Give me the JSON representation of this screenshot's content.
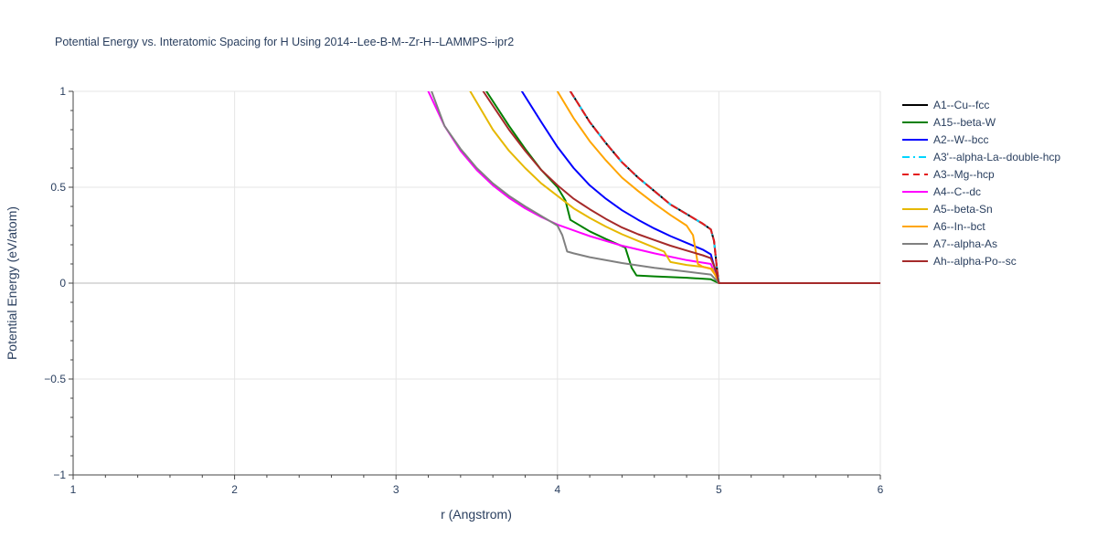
{
  "chart_data": {
    "type": "line",
    "title": "Potential Energy vs. Interatomic Spacing for H Using 2014--Lee-B-M--Zr-H--LAMMPS--ipr2",
    "xlabel": "r (Angstrom)",
    "ylabel": "Potential Energy (eV/atom)",
    "xlim": [
      1,
      6
    ],
    "ylim": [
      -1,
      1
    ],
    "x_ticks": [
      1,
      2,
      3,
      4,
      5,
      6
    ],
    "x_tick_labels": [
      "1",
      "2",
      "3",
      "4",
      "5",
      "6"
    ],
    "y_ticks": [
      -1,
      -0.5,
      0,
      0.5,
      1
    ],
    "y_tick_labels": [
      "−1",
      "−0.5",
      "0",
      "0.5",
      "1"
    ],
    "grid": true,
    "legend_position": "right",
    "series": [
      {
        "name": "A1--Cu--fcc",
        "color": "#000000",
        "dash": "solid",
        "x": [
          4.08,
          4.2,
          4.3,
          4.4,
          4.5,
          4.6,
          4.7,
          4.8,
          4.9,
          4.95,
          4.97,
          4.99,
          5.0,
          5.1,
          5.5,
          6.0
        ],
        "y": [
          1.0,
          0.84,
          0.73,
          0.63,
          0.55,
          0.48,
          0.41,
          0.36,
          0.31,
          0.28,
          0.22,
          0.06,
          0.0,
          0.0,
          0.0,
          0.0
        ]
      },
      {
        "name": "A15--beta-W",
        "color": "#008000",
        "dash": "solid",
        "x": [
          3.56,
          3.7,
          3.8,
          3.9,
          4.0,
          4.05,
          4.08,
          4.2,
          4.3,
          4.42,
          4.46,
          4.49,
          4.6,
          4.8,
          4.95,
          5.0,
          5.5,
          6.0
        ],
        "y": [
          1.0,
          0.82,
          0.7,
          0.59,
          0.5,
          0.43,
          0.33,
          0.27,
          0.23,
          0.185,
          0.08,
          0.04,
          0.035,
          0.028,
          0.02,
          0.0,
          0.0,
          0.0
        ]
      },
      {
        "name": "A2--W--bcc",
        "color": "#0000ff",
        "dash": "solid",
        "x": [
          3.78,
          3.9,
          4.0,
          4.1,
          4.2,
          4.3,
          4.4,
          4.5,
          4.6,
          4.7,
          4.8,
          4.9,
          4.95,
          4.98,
          5.0,
          5.5,
          6.0
        ],
        "y": [
          1.0,
          0.84,
          0.71,
          0.6,
          0.51,
          0.44,
          0.38,
          0.33,
          0.285,
          0.245,
          0.21,
          0.175,
          0.15,
          0.06,
          0.0,
          0.0,
          0.0
        ]
      },
      {
        "name": "A3'--alpha-La--double-hcp",
        "color": "#00d5ff",
        "dash": "dashdot",
        "x": [
          4.08,
          4.2,
          4.3,
          4.4,
          4.5,
          4.6,
          4.7,
          4.8,
          4.9,
          4.95,
          4.97,
          4.99,
          5.0,
          5.5,
          6.0
        ],
        "y": [
          1.0,
          0.84,
          0.73,
          0.63,
          0.55,
          0.48,
          0.41,
          0.36,
          0.31,
          0.28,
          0.22,
          0.06,
          0.0,
          0.0,
          0.0
        ]
      },
      {
        "name": "A3--Mg--hcp",
        "color": "#e41a1c",
        "dash": "dash",
        "x": [
          4.08,
          4.2,
          4.3,
          4.4,
          4.5,
          4.6,
          4.7,
          4.8,
          4.9,
          4.95,
          4.97,
          4.99,
          5.0,
          5.5,
          6.0
        ],
        "y": [
          1.0,
          0.84,
          0.73,
          0.63,
          0.55,
          0.48,
          0.41,
          0.36,
          0.31,
          0.28,
          0.22,
          0.06,
          0.0,
          0.0,
          0.0
        ]
      },
      {
        "name": "A4--C--dc",
        "color": "#ff00ff",
        "dash": "solid",
        "x": [
          3.2,
          3.3,
          3.4,
          3.5,
          3.6,
          3.7,
          3.8,
          3.9,
          4.0,
          4.2,
          4.4,
          4.6,
          4.8,
          4.95,
          5.0,
          5.5,
          6.0
        ],
        "y": [
          1.0,
          0.82,
          0.69,
          0.59,
          0.51,
          0.445,
          0.39,
          0.345,
          0.305,
          0.245,
          0.195,
          0.155,
          0.12,
          0.1,
          0.0,
          0.0,
          0.0
        ]
      },
      {
        "name": "A5--beta-Sn",
        "color": "#e6b800",
        "dash": "solid",
        "x": [
          3.46,
          3.6,
          3.7,
          3.8,
          3.9,
          4.0,
          4.1,
          4.2,
          4.3,
          4.4,
          4.5,
          4.6,
          4.66,
          4.7,
          4.8,
          4.9,
          4.96,
          5.0,
          5.5,
          6.0
        ],
        "y": [
          1.0,
          0.8,
          0.69,
          0.6,
          0.52,
          0.455,
          0.39,
          0.34,
          0.295,
          0.255,
          0.22,
          0.185,
          0.165,
          0.11,
          0.095,
          0.085,
          0.075,
          0.0,
          0.0,
          0.0
        ]
      },
      {
        "name": "A6--In--bct",
        "color": "#ffa500",
        "dash": "solid",
        "x": [
          4.0,
          4.1,
          4.2,
          4.3,
          4.4,
          4.5,
          4.6,
          4.7,
          4.8,
          4.84,
          4.87,
          4.9,
          4.95,
          4.98,
          5.0,
          5.5,
          6.0
        ],
        "y": [
          1.0,
          0.86,
          0.74,
          0.64,
          0.55,
          0.48,
          0.415,
          0.355,
          0.3,
          0.25,
          0.1,
          0.085,
          0.075,
          0.04,
          0.0,
          0.0,
          0.0
        ]
      },
      {
        "name": "A7--alpha-As",
        "color": "#808080",
        "dash": "solid",
        "x": [
          3.22,
          3.3,
          3.4,
          3.5,
          3.6,
          3.7,
          3.8,
          3.9,
          4.0,
          4.03,
          4.06,
          4.1,
          4.2,
          4.4,
          4.6,
          4.8,
          4.95,
          5.0,
          5.5,
          6.0
        ],
        "y": [
          1.0,
          0.82,
          0.7,
          0.6,
          0.52,
          0.455,
          0.4,
          0.35,
          0.3,
          0.25,
          0.165,
          0.155,
          0.135,
          0.105,
          0.08,
          0.06,
          0.045,
          0.0,
          0.0,
          0.0
        ]
      },
      {
        "name": "Ah--alpha-Po--sc",
        "color": "#a52a2a",
        "dash": "solid",
        "x": [
          3.54,
          3.7,
          3.8,
          3.9,
          4.0,
          4.1,
          4.2,
          4.3,
          4.4,
          4.5,
          4.6,
          4.7,
          4.8,
          4.9,
          4.95,
          4.98,
          5.0,
          5.5,
          6.0
        ],
        "y": [
          1.0,
          0.8,
          0.69,
          0.59,
          0.51,
          0.44,
          0.385,
          0.335,
          0.29,
          0.255,
          0.225,
          0.195,
          0.17,
          0.145,
          0.13,
          0.07,
          0.0,
          0.0,
          0.0
        ]
      }
    ]
  }
}
